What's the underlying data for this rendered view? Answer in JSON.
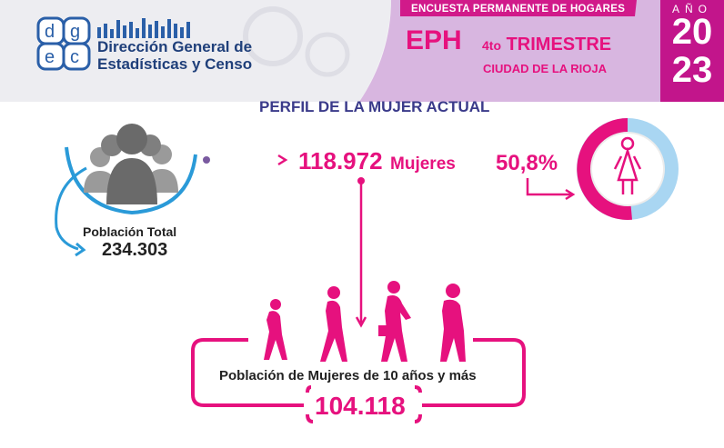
{
  "header": {
    "organization_line1": "Dirección General de",
    "organization_line2": "Estadísticas y Censo",
    "survey_name": "ENCUESTA PERMANENTE DE HOGARES",
    "program": "EPH",
    "quarter_prefix": "4to",
    "quarter_word": "TRIMESTRE",
    "city": "CIUDAD DE LA RIOJA",
    "year_label": "AÑO",
    "year_top": "20",
    "year_bottom": "23"
  },
  "title": "PERFIL DE LA MUJER ACTUAL",
  "stats": {
    "women_value": "118.972",
    "women_label": "Mujeres",
    "women_percent": "50,8%",
    "total_label": "Población Total",
    "total_value": "234.303",
    "women10_label": "Población de Mujeres de 10 años y más",
    "women10_value": "104.118"
  },
  "icons": [
    "logo-icon",
    "people-group-icon",
    "woman-icon",
    "walking-women-icon"
  ],
  "colors": {
    "magenta": "#e6117e",
    "dark_magenta": "#c2158b",
    "navy": "#1f3f7a",
    "blue": "#2a9ad8",
    "light_blue": "#a9d6f2",
    "gray_figures": "#6f6f6f"
  }
}
